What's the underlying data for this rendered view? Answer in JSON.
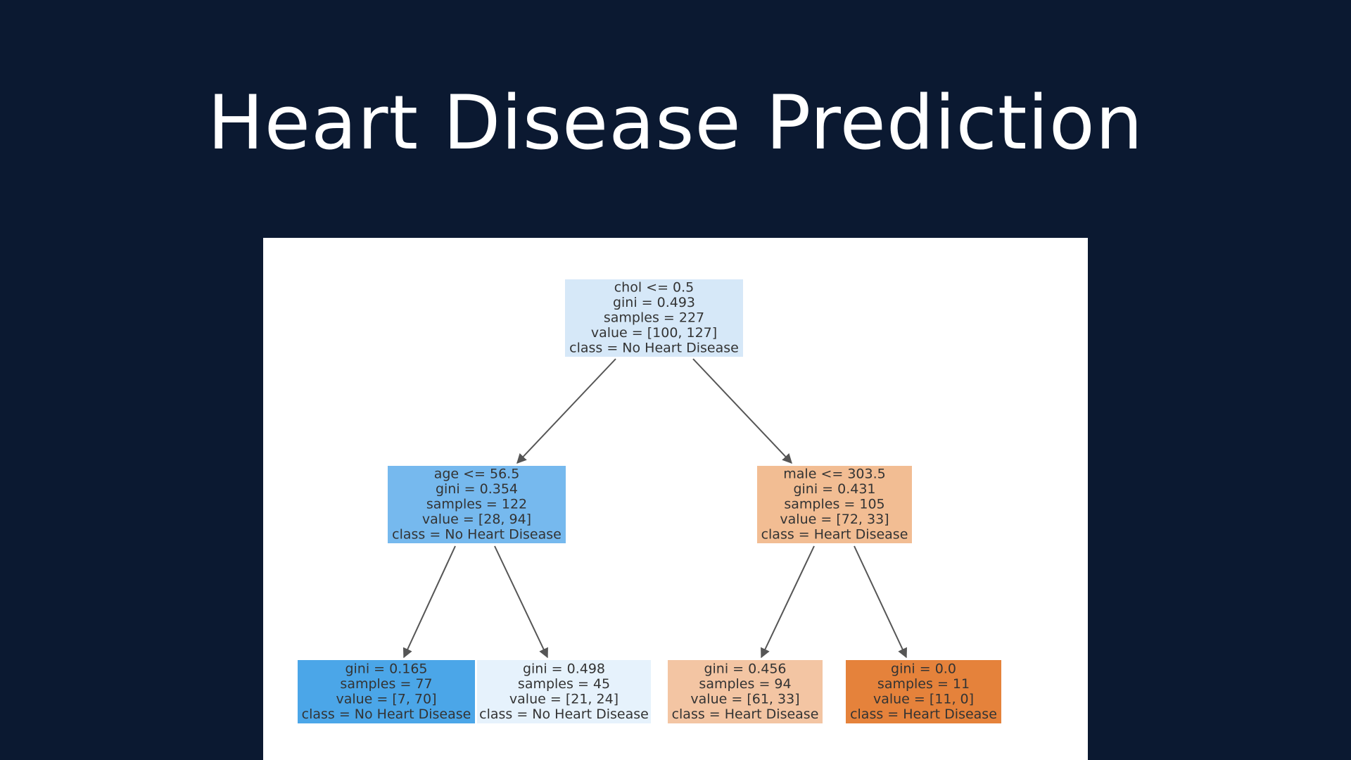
{
  "slide": {
    "title": "Heart Disease Prediction"
  },
  "tree": {
    "nodes": [
      {
        "id": "root",
        "lines": [
          "chol <= 0.5",
          "gini = 0.493",
          "samples = 227",
          "value = [100, 127]",
          "class = No Heart Disease"
        ],
        "color": "#d6e8f8"
      },
      {
        "id": "left",
        "lines": [
          "age <= 56.5",
          "gini = 0.354",
          "samples = 122",
          "value = [28, 94]",
          "class = No Heart Disease"
        ],
        "color": "#76b9ee"
      },
      {
        "id": "right",
        "lines": [
          "male <= 303.5",
          "gini = 0.431",
          "samples = 105",
          "value = [72, 33]",
          "class = Heart Disease"
        ],
        "color": "#f2bd93"
      },
      {
        "id": "leaf-1",
        "lines": [
          "gini = 0.165",
          "samples = 77",
          "value = [7, 70]",
          "class = No Heart Disease"
        ],
        "color": "#4ba6e8"
      },
      {
        "id": "leaf-2",
        "lines": [
          "gini = 0.498",
          "samples = 45",
          "value = [21, 24]",
          "class = No Heart Disease"
        ],
        "color": "#e6f2fc"
      },
      {
        "id": "leaf-3",
        "lines": [
          "gini = 0.456",
          "samples = 94",
          "value = [61, 33]",
          "class = Heart Disease"
        ],
        "color": "#f3c5a3"
      },
      {
        "id": "leaf-4",
        "lines": [
          "gini = 0.0",
          "samples = 11",
          "value = [11, 0]",
          "class = Heart Disease"
        ],
        "color": "#e5823b"
      }
    ],
    "edges": [
      {
        "from": "root",
        "to": "left"
      },
      {
        "from": "root",
        "to": "right"
      },
      {
        "from": "left",
        "to": "leaf-1"
      },
      {
        "from": "left",
        "to": "leaf-2"
      },
      {
        "from": "right",
        "to": "leaf-3"
      },
      {
        "from": "right",
        "to": "leaf-4"
      }
    ]
  }
}
